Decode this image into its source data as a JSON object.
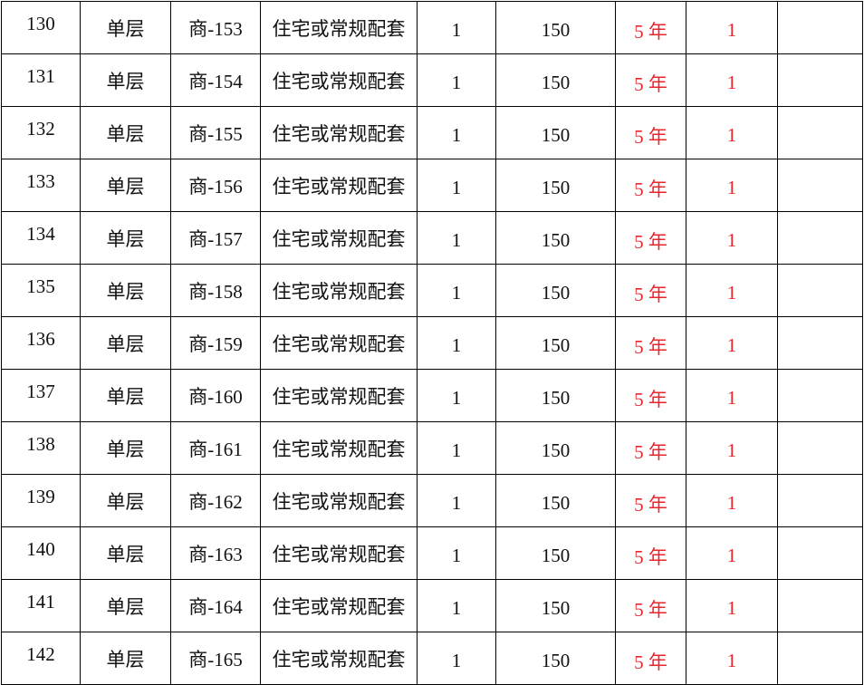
{
  "colors": {
    "text": "#111111",
    "highlight": "#e8262e",
    "border": "#000000"
  },
  "rows": [
    [
      "130",
      "单层",
      "商-153",
      "住宅或常规配套",
      "1",
      "150",
      "5 年",
      "1",
      ""
    ],
    [
      "131",
      "单层",
      "商-154",
      "住宅或常规配套",
      "1",
      "150",
      "5 年",
      "1",
      ""
    ],
    [
      "132",
      "单层",
      "商-155",
      "住宅或常规配套",
      "1",
      "150",
      "5 年",
      "1",
      ""
    ],
    [
      "133",
      "单层",
      "商-156",
      "住宅或常规配套",
      "1",
      "150",
      "5 年",
      "1",
      ""
    ],
    [
      "134",
      "单层",
      "商-157",
      "住宅或常规配套",
      "1",
      "150",
      "5 年",
      "1",
      ""
    ],
    [
      "135",
      "单层",
      "商-158",
      "住宅或常规配套",
      "1",
      "150",
      "5 年",
      "1",
      ""
    ],
    [
      "136",
      "单层",
      "商-159",
      "住宅或常规配套",
      "1",
      "150",
      "5 年",
      "1",
      ""
    ],
    [
      "137",
      "单层",
      "商-160",
      "住宅或常规配套",
      "1",
      "150",
      "5 年",
      "1",
      ""
    ],
    [
      "138",
      "单层",
      "商-161",
      "住宅或常规配套",
      "1",
      "150",
      "5 年",
      "1",
      ""
    ],
    [
      "139",
      "单层",
      "商-162",
      "住宅或常规配套",
      "1",
      "150",
      "5 年",
      "1",
      ""
    ],
    [
      "140",
      "单层",
      "商-163",
      "住宅或常规配套",
      "1",
      "150",
      "5 年",
      "1",
      ""
    ],
    [
      "141",
      "单层",
      "商-164",
      "住宅或常规配套",
      "1",
      "150",
      "5 年",
      "1",
      ""
    ],
    [
      "142",
      "单层",
      "商-165",
      "住宅或常规配套",
      "1",
      "150",
      "5 年",
      "1",
      ""
    ]
  ]
}
